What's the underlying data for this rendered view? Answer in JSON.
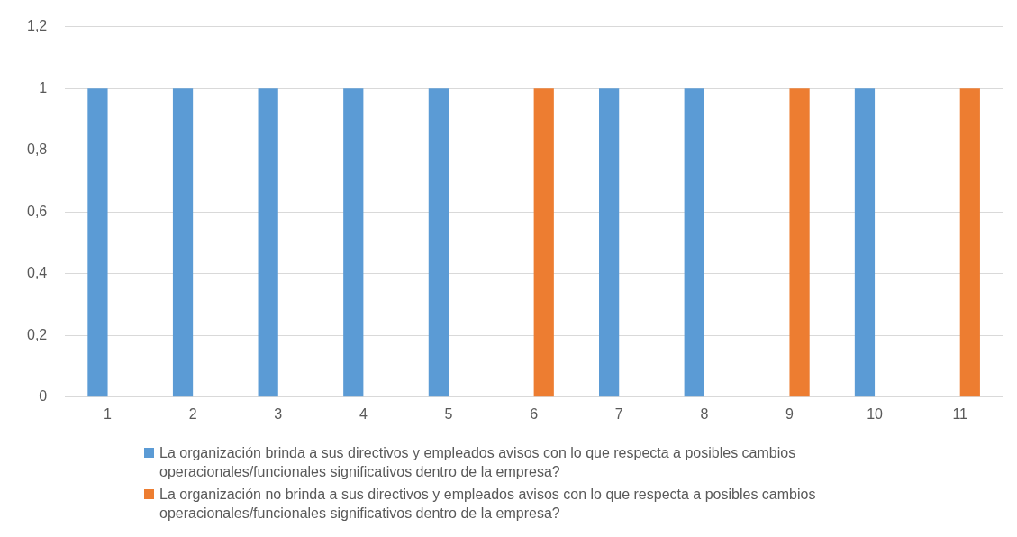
{
  "chart_data": {
    "type": "bar",
    "categories": [
      "1",
      "2",
      "3",
      "4",
      "5",
      "6",
      "7",
      "8",
      "9",
      "10",
      "11"
    ],
    "series": [
      {
        "name": "La organización brinda a sus directivos  y empleados avisos con lo que respecta a posibles cambios operacionales/funcionales significativos dentro de la empresa?",
        "color": "#5b9bd5",
        "values": [
          1,
          1,
          1,
          1,
          1,
          null,
          1,
          1,
          null,
          1,
          null
        ]
      },
      {
        "name": "La organización  no brinda a sus directivos  y empleados avisos con lo que respecta a posibles cambios operacionales/funcionales significativos dentro de la empresa?",
        "color": "#ed7d31",
        "values": [
          null,
          null,
          null,
          null,
          null,
          1,
          null,
          null,
          1,
          null,
          1
        ]
      }
    ],
    "ylim": [
      0,
      1.2
    ],
    "yticks": [
      {
        "value": 0,
        "label": "0"
      },
      {
        "value": 0.2,
        "label": "0,2"
      },
      {
        "value": 0.4,
        "label": "0,4"
      },
      {
        "value": 0.6,
        "label": "0,6"
      },
      {
        "value": 0.8,
        "label": "0,8"
      },
      {
        "value": 1,
        "label": "1"
      },
      {
        "value": 1.2,
        "label": "1,2"
      }
    ],
    "grid": "y",
    "legend": "bottom"
  }
}
